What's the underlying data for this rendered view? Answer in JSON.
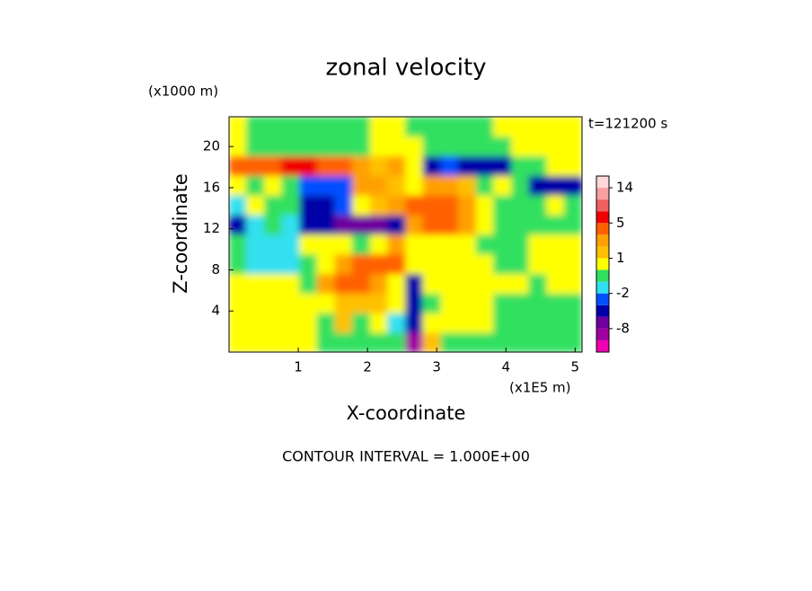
{
  "chart_data": {
    "type": "contour",
    "title": "zonal velocity",
    "y_unit": "(x1000 m)",
    "x_unit": "(x1E5 m)",
    "time_label": "t=121200 s",
    "xlabel": "X-coordinate",
    "ylabel": "Z-coordinate",
    "footer": "CONTOUR INTERVAL = 1.000E+00",
    "xlim": [
      0,
      5.1
    ],
    "xticks": [
      1,
      2,
      3,
      4,
      5
    ],
    "ylim": [
      0,
      22.9
    ],
    "yticks": [
      4,
      8,
      12,
      16,
      20
    ],
    "x": [
      0.13,
      0.38,
      0.64,
      0.89,
      1.15,
      1.4,
      1.66,
      1.91,
      2.17,
      2.42,
      2.68,
      2.93,
      3.19,
      3.44,
      3.7,
      3.95,
      4.21,
      4.46,
      4.72,
      4.97
    ],
    "z": [
      0.95,
      2.86,
      4.77,
      6.68,
      8.59,
      10.5,
      12.41,
      14.32,
      16.23,
      18.14,
      20.05,
      21.96
    ],
    "values": [
      [
        0.5,
        0.5,
        0.5,
        0.5,
        0.5,
        -0.5,
        -0.5,
        -0.5,
        -0.5,
        -0.5,
        -9,
        1.5,
        -0.5,
        -0.5,
        -0.5,
        -0.5,
        -0.5,
        -0.5,
        -0.5,
        -0.5
      ],
      [
        0.5,
        0.5,
        0.5,
        0.5,
        0.5,
        -0.5,
        1.5,
        -0.5,
        0.5,
        -1.5,
        -5,
        0.5,
        0.5,
        0.5,
        0.5,
        -0.5,
        -0.5,
        -0.5,
        -0.5,
        -0.5
      ],
      [
        0.5,
        0.5,
        0.5,
        0.5,
        0.5,
        0.5,
        1.5,
        1.5,
        1.5,
        0.5,
        -4,
        -0.5,
        0.5,
        0.5,
        0.5,
        -0.5,
        -0.5,
        -0.5,
        -0.5,
        -0.5
      ],
      [
        0.5,
        0.5,
        0.5,
        0.5,
        -0.5,
        2.5,
        3.5,
        3.5,
        2.5,
        0.5,
        -3.5,
        0.5,
        0.5,
        0.5,
        0.5,
        0.5,
        0.5,
        -0.5,
        0.5,
        0.5
      ],
      [
        -0.5,
        -1.5,
        -1.5,
        -1.5,
        -0.5,
        0.5,
        2.5,
        3.5,
        3.5,
        3.5,
        0.5,
        0.5,
        0.5,
        0.5,
        0.5,
        -0.5,
        -0.5,
        0.5,
        0.5,
        0.5
      ],
      [
        -0.5,
        -1.5,
        -1.5,
        -1.5,
        0.5,
        0.5,
        0.5,
        -0.5,
        0.5,
        2.5,
        0.5,
        0.5,
        0.5,
        0.5,
        -0.5,
        -0.5,
        -0.5,
        0.5,
        0.5,
        0.5
      ],
      [
        -4,
        -1.5,
        -0.5,
        -1.5,
        -4,
        -4,
        -6,
        -6,
        -6,
        -4,
        2.5,
        3.5,
        3.5,
        2.5,
        0.5,
        -0.5,
        -0.5,
        -0.5,
        -0.5,
        -0.5
      ],
      [
        -1.5,
        0.5,
        -0.5,
        -0.5,
        -3.5,
        -4,
        -2.5,
        0.5,
        1.5,
        2.5,
        3.5,
        3.5,
        3.5,
        2.5,
        0.5,
        -0.5,
        -0.5,
        -0.5,
        0.5,
        -0.5
      ],
      [
        0.5,
        -0.5,
        0.5,
        -0.5,
        -2.5,
        -2.5,
        -2.5,
        2.5,
        2.5,
        1.5,
        0.5,
        2.5,
        2.5,
        1.5,
        -0.5,
        0.5,
        -0.5,
        -4,
        -4,
        -4
      ],
      [
        3.5,
        3.5,
        4,
        5.5,
        5.5,
        3.5,
        3.5,
        2.5,
        1.5,
        2.5,
        0.5,
        -3.5,
        -2.5,
        -3.5,
        -4,
        -4,
        -0.5,
        -0.5,
        0.5,
        0.5
      ],
      [
        0.5,
        -0.5,
        -0.5,
        -0.5,
        -0.5,
        -0.5,
        -0.5,
        -0.5,
        0.5,
        0.5,
        0.5,
        -0.5,
        -0.5,
        -0.5,
        -0.5,
        -0.5,
        0.5,
        0.5,
        0.5,
        0.5
      ],
      [
        0.5,
        -0.5,
        -0.5,
        -0.5,
        -0.5,
        -0.5,
        -0.5,
        -0.5,
        0.5,
        0.5,
        -0.5,
        -0.5,
        -0.5,
        -0.5,
        -0.5,
        0.5,
        0.5,
        0.5,
        0.5,
        0.5
      ]
    ],
    "colorbar": {
      "levels": [
        -20,
        -12,
        -8,
        -5,
        -3,
        -2,
        -1,
        0,
        1,
        2,
        3,
        5,
        8,
        11,
        14,
        20
      ],
      "colors": [
        "#f000b0",
        "#a000a0",
        "#6e00a0",
        "#0000a8",
        "#0050ff",
        "#30e0f0",
        "#30e060",
        "#ffff00",
        "#ffc000",
        "#ffa000",
        "#ff6000",
        "#f00000",
        "#f06060",
        "#f8a0a0",
        "#ffd8d8"
      ],
      "ticks": [
        14,
        5,
        1,
        -2,
        -8
      ]
    }
  }
}
